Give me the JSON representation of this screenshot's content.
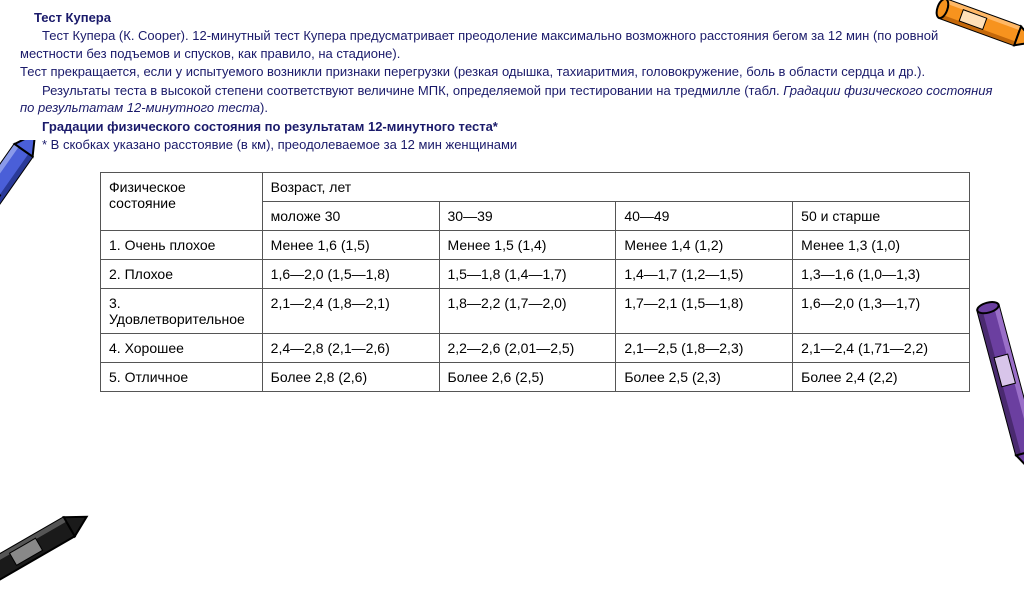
{
  "title": "Тест Купера",
  "p1": "Тест Купера (К. Cooper). 12-минутный тест Купера предусматривает преодоление максимально возможного расстояния бегом за 12 мин (по ровной местности без подъемов и спусков, как правило, на стадионе).",
  "p2a": "Тест прекращается, если у испытуемого возникли признаки перегрузки (резкая одышка, тахиаритмия, головокружение, боль в области сердца и др.).",
  "p3a": "Результаты теста в высокой степени соответствуют величине МПК, определяемой при тестировании на тредмилле (табл. ",
  "p3b": "Градации физического состояния по результатам 12-минутного теста",
  "p3c": ").",
  "p4": "Градации физического состояния по результатам 12-минутного теста*",
  "p5": "* В скобках указано расстоявие (в км), преодолеваемое за 12 мин женщинами",
  "table": {
    "header_col": "Физическое состояние",
    "header_age": "Возраст, лет",
    "ages": [
      "моложе 30",
      "30—39",
      "40—49",
      "50 и старше"
    ],
    "rows": [
      {
        "label": "1. Очень плохое",
        "cells": [
          "Менее 1,6 (1,5)",
          "Менее 1,5 (1,4)",
          "Менее 1,4 (1,2)",
          "Менее 1,3 (1,0)"
        ]
      },
      {
        "label": "2. Плохое",
        "cells": [
          "1,6—2,0 (1,5—1,8)",
          "1,5—1,8 (1,4—1,7)",
          "1,4—1,7 (1,2—1,5)",
          "1,3—1,6 (1,0—1,3)"
        ]
      },
      {
        "label": "3. Удовлетворительное",
        "cells": [
          "2,1—2,4 (1,8—2,1)",
          "1,8—2,2 (1,7—2,0)",
          "1,7—2,1 (1,5—1,8)",
          "1,6—2,0 (1,3—1,7)"
        ]
      },
      {
        "label": "4. Хорошее",
        "cells": [
          "2,4—2,8 (2,1—2,6)",
          "2,2—2,6 (2,01—2,5)",
          "2,1—2,5 (1,8—2,3)",
          "2,1—2,4 (1,71—2,2)"
        ]
      },
      {
        "label": "5. Отличное",
        "cells": [
          "Более 2,8 (2,6)",
          "Более 2,6 (2,5)",
          "Более 2,5 (2,3)",
          "Более 2,4 (2,2)"
        ]
      }
    ],
    "col_widths": [
      "160px",
      "175px",
      "175px",
      "175px",
      "175px"
    ]
  },
  "colors": {
    "text_body": "#1a1a6a",
    "table_text": "#000000",
    "border": "#555555",
    "crayon_orange": "#f7931e",
    "crayon_purple": "#6b3fa0",
    "crayon_blue": "#4a5fd8",
    "crayon_black": "#1a1a1a",
    "crayon_outline": "#000000"
  }
}
